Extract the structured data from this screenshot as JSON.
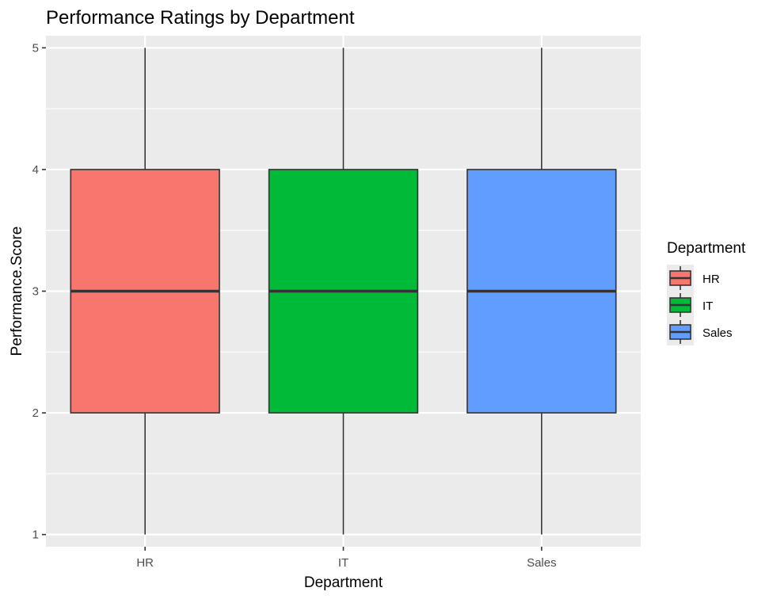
{
  "chart_data": {
    "type": "boxplot",
    "title": "Performance Ratings by Department",
    "xlabel": "Department",
    "ylabel": "Performance.Score",
    "categories": [
      "HR",
      "IT",
      "Sales"
    ],
    "ylim": [
      0.9,
      5.1
    ],
    "yticks": [
      1,
      2,
      3,
      4,
      5
    ],
    "grid": true,
    "legend": {
      "title": "Department",
      "placement": "right",
      "entries": [
        "HR",
        "IT",
        "Sales"
      ]
    },
    "colors": {
      "HR": "#F8766D",
      "IT": "#00BA38",
      "Sales": "#619CFF",
      "panel": "#EBEBEB",
      "gridline": "#FFFFFF",
      "box_outline": "#333333"
    },
    "boxes": [
      {
        "category": "HR",
        "min": 1,
        "q1": 2,
        "median": 3,
        "q3": 4,
        "max": 5
      },
      {
        "category": "IT",
        "min": 1,
        "q1": 2,
        "median": 3,
        "q3": 4,
        "max": 5
      },
      {
        "category": "Sales",
        "min": 1,
        "q1": 2,
        "median": 3,
        "q3": 4,
        "max": 5
      }
    ]
  }
}
